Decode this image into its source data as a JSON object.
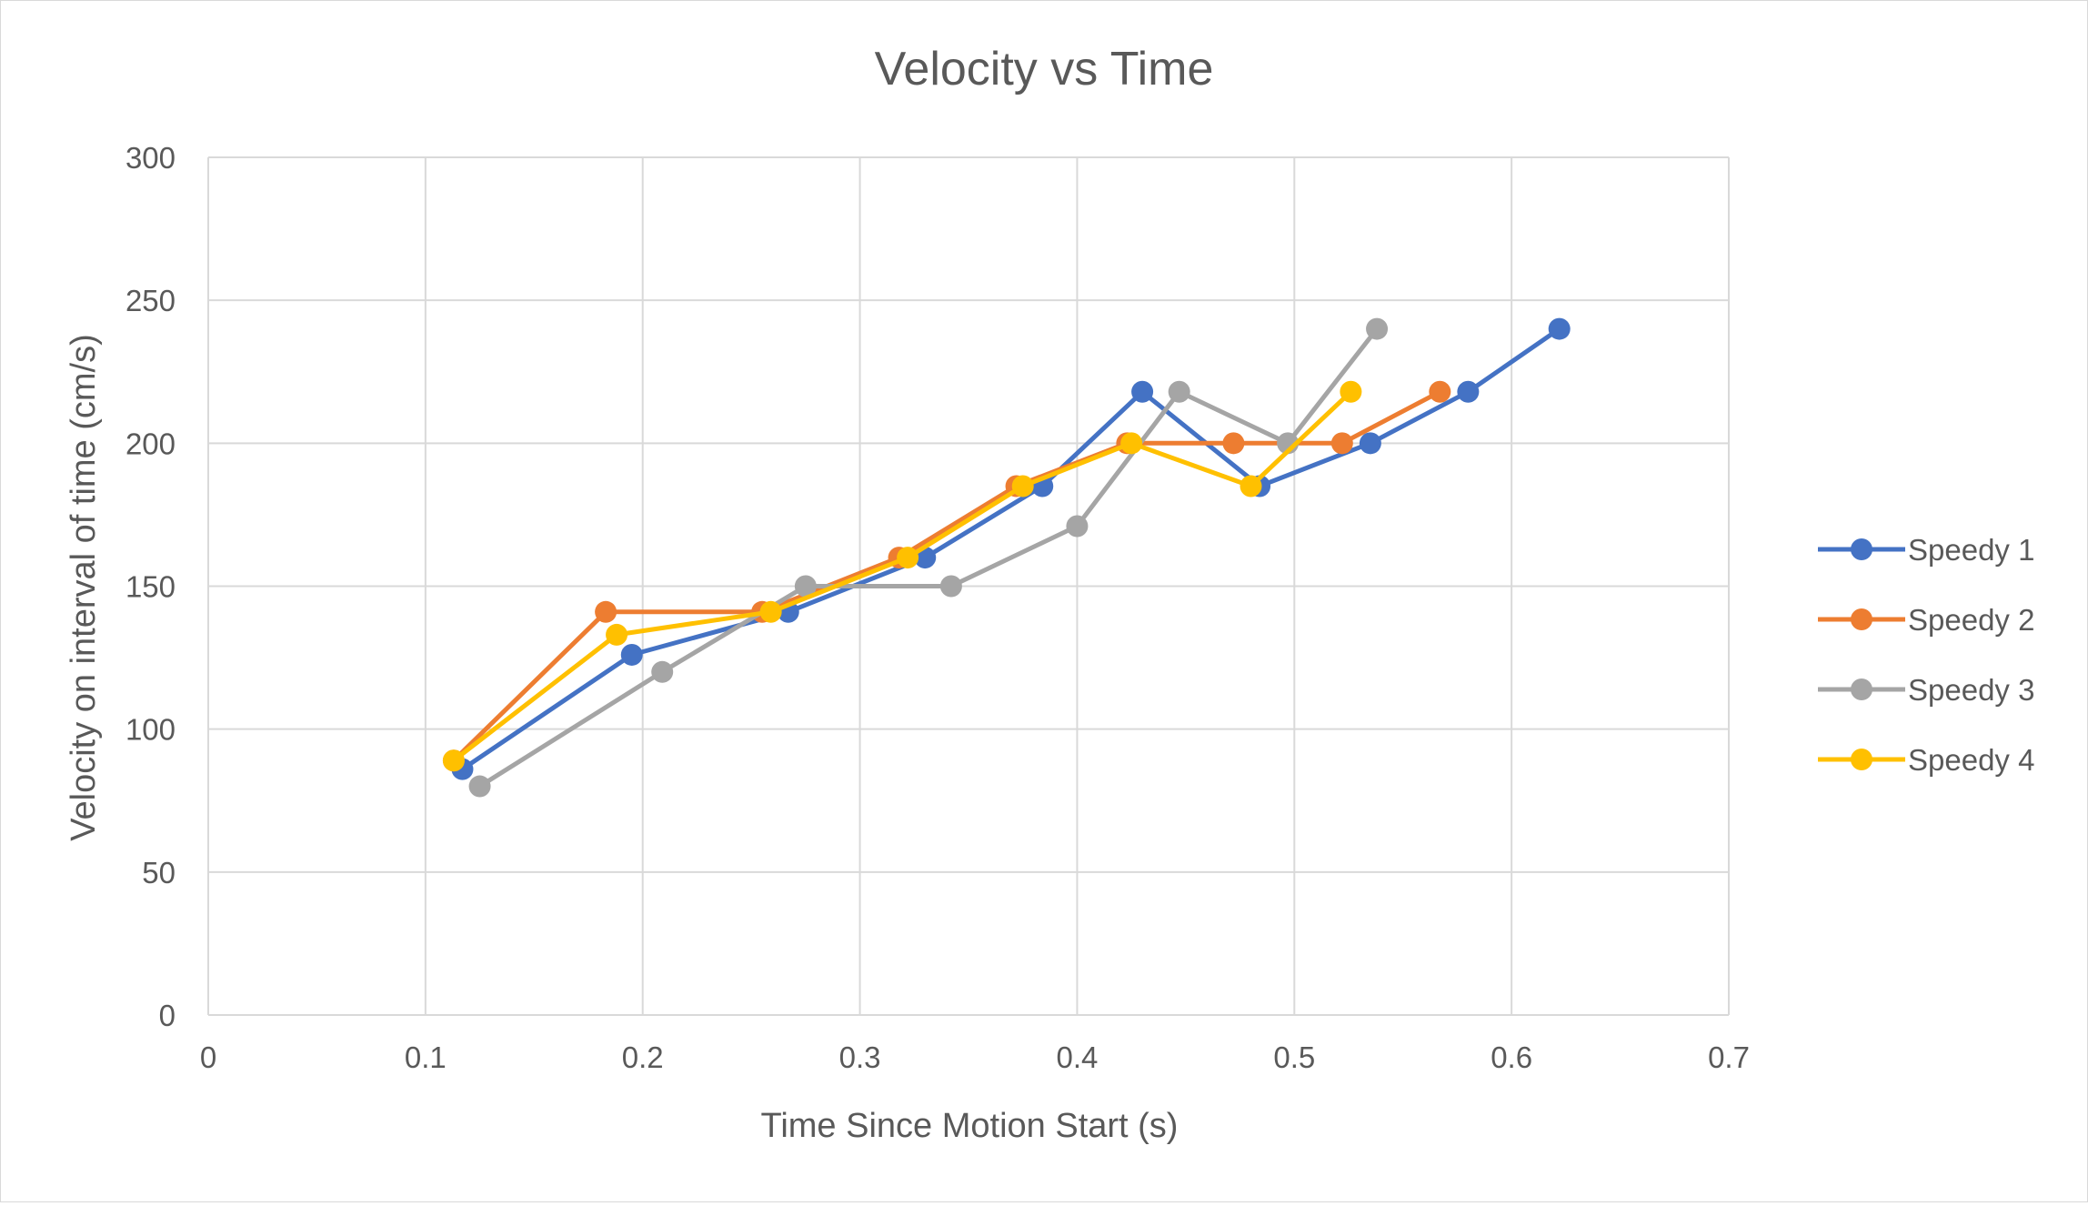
{
  "chart_data": {
    "type": "line",
    "title": "Velocity vs Time",
    "xlabel": "Time Since Motion Start (s)",
    "ylabel": "Velocity on interval of time (cm/s)",
    "xlim": [
      0,
      0.7
    ],
    "ylim": [
      0,
      300
    ],
    "x_ticks": [
      "0",
      "0.1",
      "0.2",
      "0.3",
      "0.4",
      "0.5",
      "0.6",
      "0.7"
    ],
    "y_ticks": [
      "0",
      "50",
      "100",
      "150",
      "200",
      "250",
      "300"
    ],
    "x_tick_values": [
      0,
      0.1,
      0.2,
      0.3,
      0.4,
      0.5,
      0.6,
      0.7
    ],
    "y_tick_values": [
      0,
      50,
      100,
      150,
      200,
      250,
      300
    ],
    "grid": true,
    "markers": true,
    "legend_position": "right",
    "series": [
      {
        "name": "Speedy 1",
        "color": "#4472C4",
        "points": [
          [
            0.117,
            86
          ],
          [
            0.195,
            126
          ],
          [
            0.267,
            141
          ],
          [
            0.33,
            160
          ],
          [
            0.384,
            185
          ],
          [
            0.43,
            218
          ],
          [
            0.484,
            185
          ],
          [
            0.535,
            200
          ],
          [
            0.58,
            218
          ],
          [
            0.622,
            240
          ]
        ]
      },
      {
        "name": "Speedy 2",
        "color": "#ED7D31",
        "points": [
          [
            0.113,
            89
          ],
          [
            0.183,
            141
          ],
          [
            0.255,
            141
          ],
          [
            0.318,
            160
          ],
          [
            0.372,
            185
          ],
          [
            0.423,
            200
          ],
          [
            0.472,
            200
          ],
          [
            0.522,
            200
          ],
          [
            0.567,
            218
          ]
        ]
      },
      {
        "name": "Speedy 3",
        "color": "#A5A5A5",
        "points": [
          [
            0.125,
            80
          ],
          [
            0.209,
            120
          ],
          [
            0.275,
            150
          ],
          [
            0.342,
            150
          ],
          [
            0.4,
            171
          ],
          [
            0.447,
            218
          ],
          [
            0.497,
            200
          ],
          [
            0.538,
            240
          ]
        ]
      },
      {
        "name": "Speedy 4",
        "color": "#FFC000",
        "points": [
          [
            0.113,
            89
          ],
          [
            0.188,
            133
          ],
          [
            0.259,
            141
          ],
          [
            0.322,
            160
          ],
          [
            0.375,
            185
          ],
          [
            0.425,
            200
          ],
          [
            0.48,
            185
          ],
          [
            0.526,
            218
          ]
        ]
      }
    ]
  }
}
